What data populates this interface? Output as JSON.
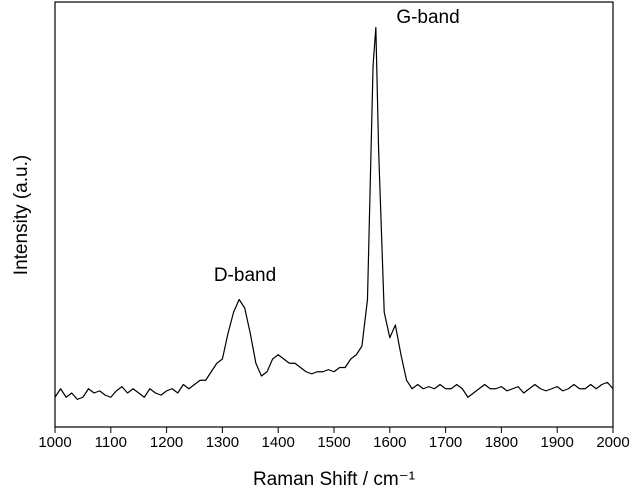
{
  "chart_data": {
    "type": "line",
    "xlabel": "Raman Shift / cm⁻¹",
    "ylabel": "Intensity (a.u.)",
    "annotations": [
      "D-band",
      "G-band"
    ],
    "x": [
      1000,
      1010,
      1020,
      1030,
      1040,
      1050,
      1060,
      1070,
      1080,
      1090,
      1100,
      1110,
      1120,
      1130,
      1140,
      1150,
      1160,
      1170,
      1180,
      1190,
      1200,
      1210,
      1220,
      1230,
      1240,
      1250,
      1260,
      1270,
      1280,
      1290,
      1300,
      1310,
      1320,
      1330,
      1340,
      1350,
      1360,
      1370,
      1380,
      1390,
      1400,
      1410,
      1420,
      1430,
      1440,
      1450,
      1460,
      1470,
      1480,
      1490,
      1500,
      1510,
      1520,
      1530,
      1540,
      1550,
      1560,
      1570,
      1575,
      1580,
      1590,
      1600,
      1610,
      1620,
      1630,
      1640,
      1650,
      1660,
      1670,
      1680,
      1690,
      1700,
      1710,
      1720,
      1730,
      1740,
      1750,
      1760,
      1770,
      1780,
      1790,
      1800,
      1810,
      1820,
      1830,
      1840,
      1850,
      1860,
      1870,
      1880,
      1890,
      1900,
      1910,
      1920,
      1930,
      1940,
      1950,
      1960,
      1970,
      1980,
      1990,
      2000
    ],
    "series": [
      {
        "color": "#000000",
        "values": [
          7,
          9,
          7,
          8,
          6.5,
          7,
          9,
          8,
          8.5,
          7.5,
          7,
          8.5,
          9.5,
          8,
          9,
          8,
          7,
          9,
          8,
          7.5,
          8.5,
          9,
          8,
          10,
          9,
          10,
          11,
          11,
          13,
          15,
          16,
          22,
          27,
          30,
          28,
          22,
          15,
          12,
          13,
          16,
          17,
          16,
          15,
          15,
          14,
          13,
          12.5,
          13,
          13,
          13.5,
          13,
          14,
          14,
          16,
          17,
          19,
          30,
          85,
          94,
          65,
          27,
          21,
          24,
          17,
          11,
          9,
          10,
          9,
          9.5,
          9,
          10,
          9,
          9,
          10,
          9,
          7,
          8,
          9,
          10,
          9,
          9,
          9.5,
          8.5,
          9,
          9.5,
          8,
          9,
          10,
          9,
          8.5,
          9,
          9.5,
          8.5,
          9,
          10,
          9,
          9,
          10,
          9,
          10,
          10.5,
          9
        ]
      }
    ],
    "xlim": [
      1000,
      2000
    ],
    "xticks": [
      1000,
      1100,
      1200,
      1300,
      1400,
      1500,
      1600,
      1700,
      1800,
      1900,
      2000
    ],
    "ylim": [
      0,
      100
    ]
  }
}
